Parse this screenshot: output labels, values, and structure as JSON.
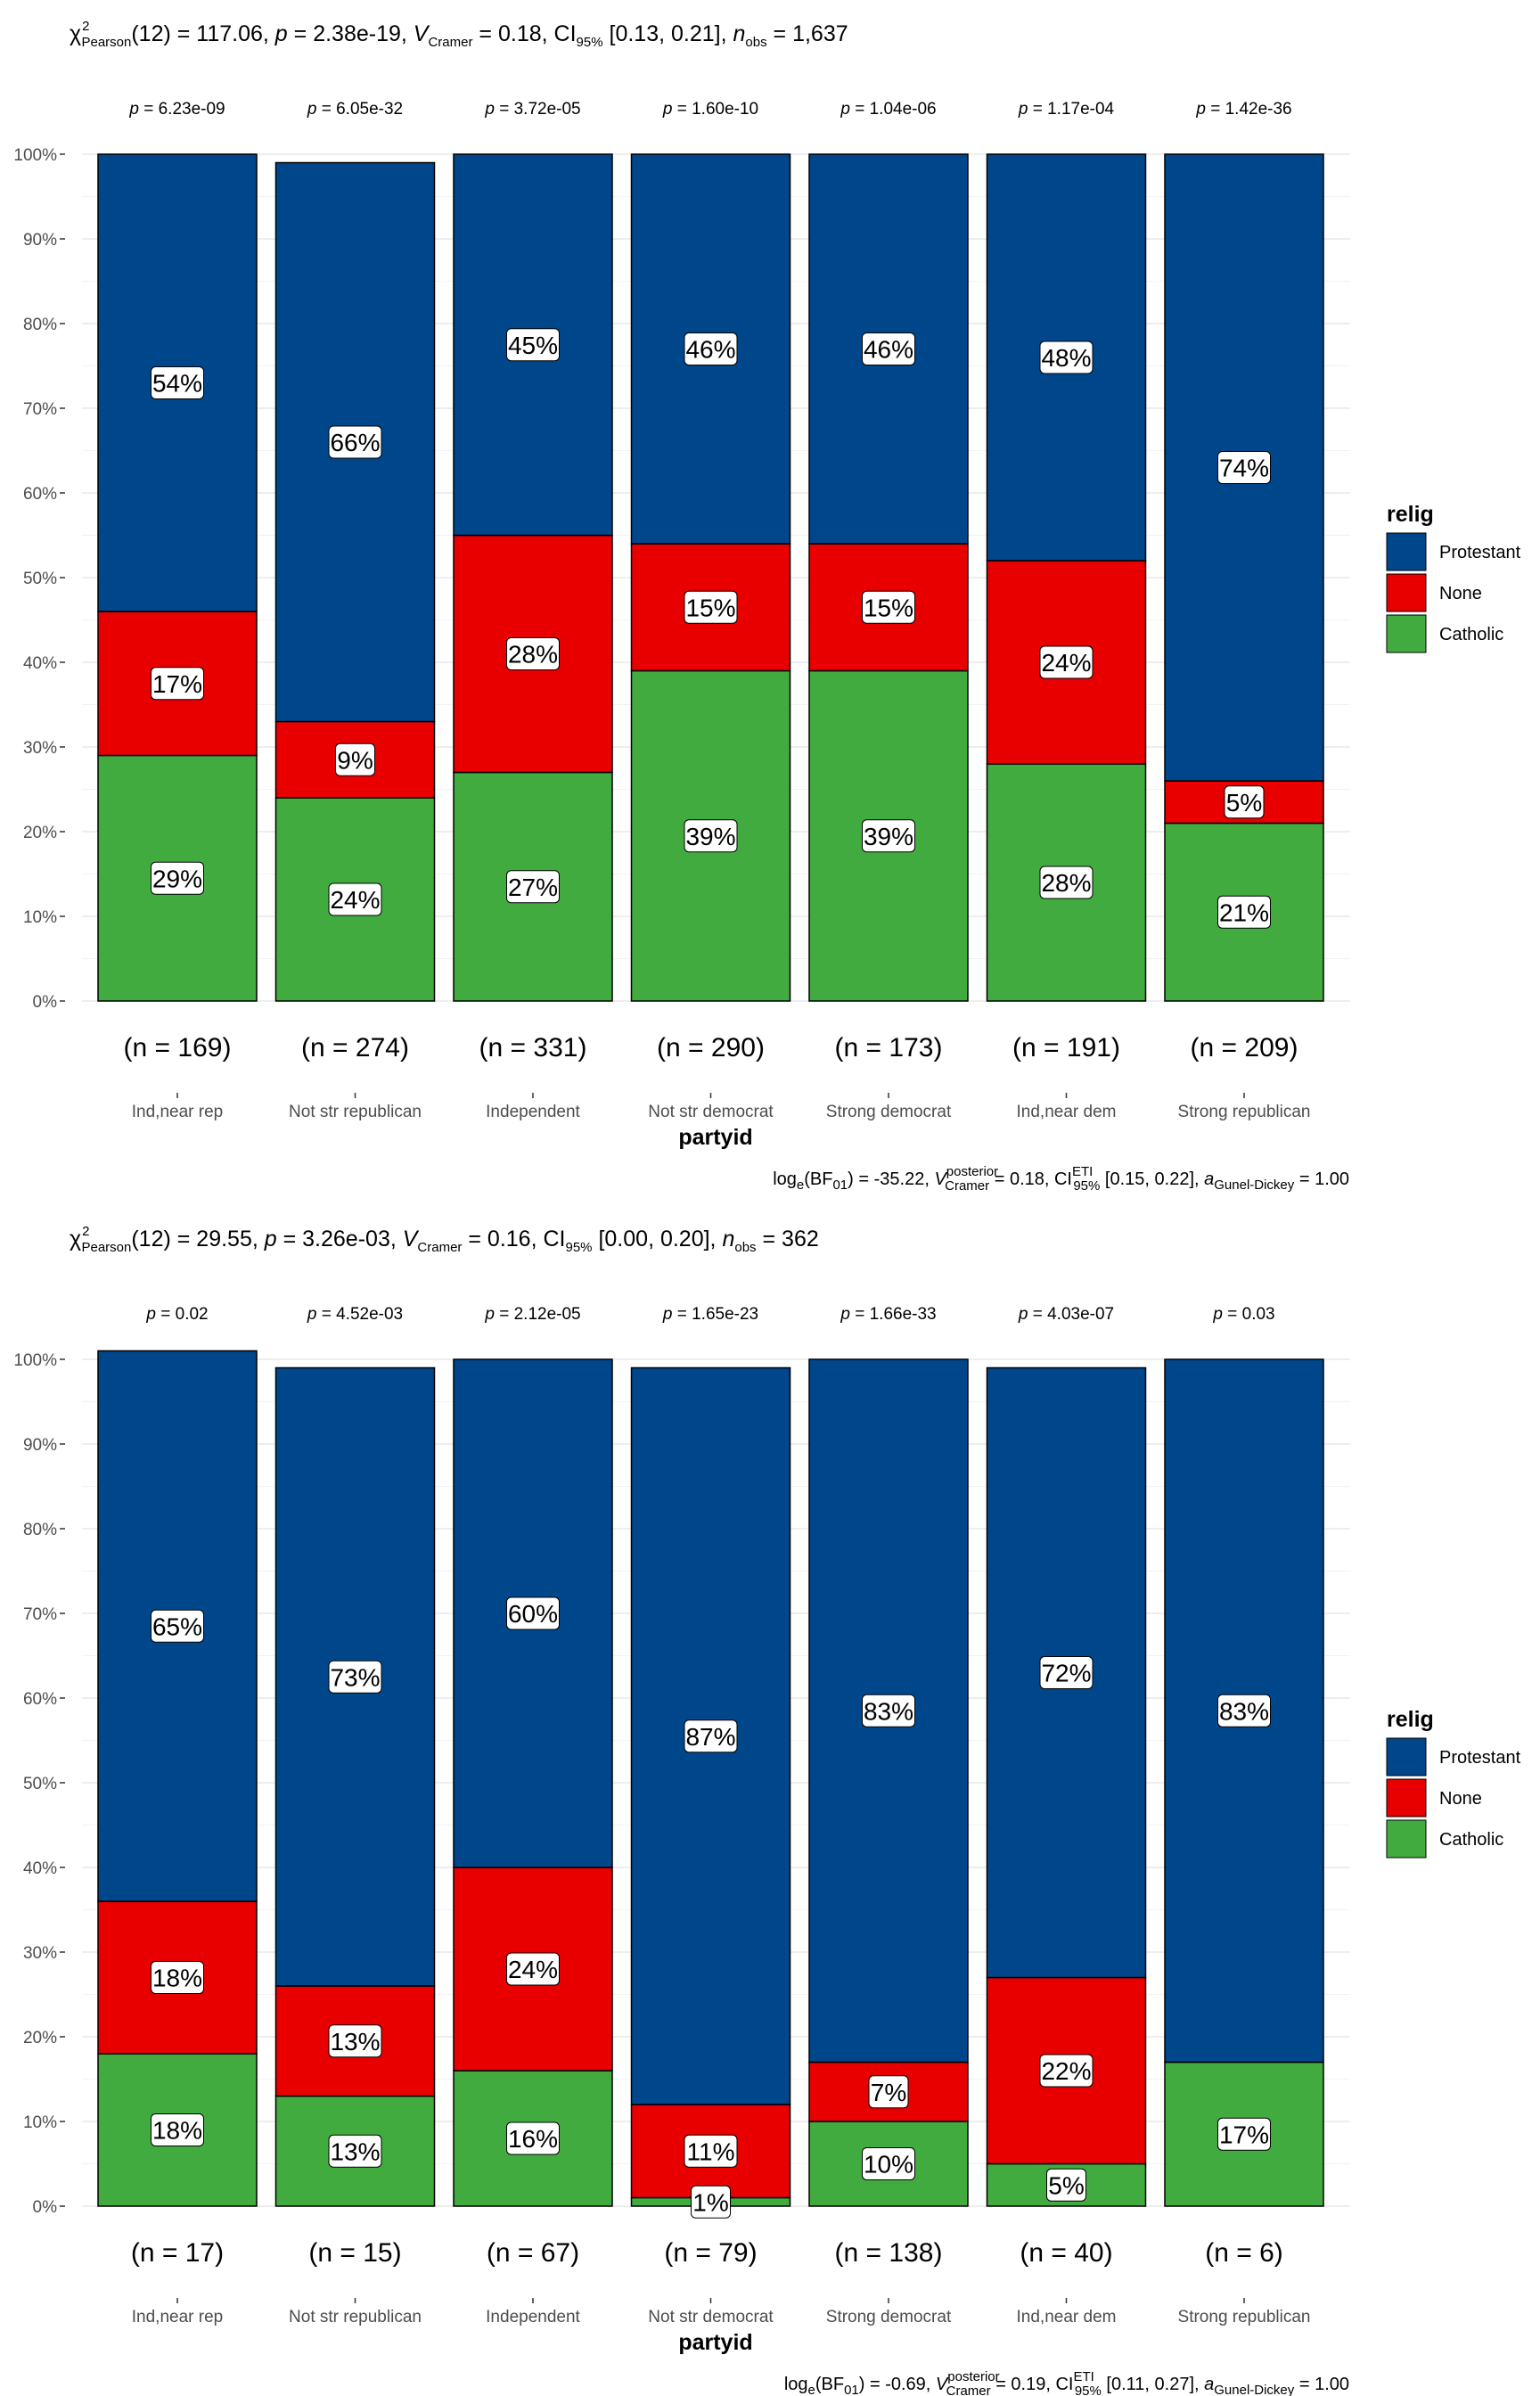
{
  "chart_data": [
    {
      "type": "bar",
      "stacked": true,
      "percent": true,
      "subtitle": {
        "stat": "117.06",
        "df": "12",
        "p": "2.38e-19",
        "v": "0.18",
        "ci": "[0.13, 0.21]",
        "nobs": "1,637"
      },
      "caption": {
        "bf": "-35.22",
        "v": "0.18",
        "ci": "[0.15, 0.22]",
        "a": "1.00"
      },
      "xlabel": "partyid",
      "ylim": [
        0,
        100
      ],
      "yticks": [
        "0%",
        "10%",
        "20%",
        "30%",
        "40%",
        "50%",
        "60%",
        "70%",
        "80%",
        "90%",
        "100%"
      ],
      "categories": [
        "Ind,near rep",
        "Not str republican",
        "Independent",
        "Not str democrat",
        "Strong democrat",
        "Ind,near dem",
        "Strong republican"
      ],
      "pvalues": [
        "6.23e-09",
        "6.05e-32",
        "3.72e-05",
        "1.60e-10",
        "1.04e-06",
        "1.17e-04",
        "1.42e-36"
      ],
      "counts": [
        "(n = 169)",
        "(n = 274)",
        "(n = 331)",
        "(n = 290)",
        "(n = 173)",
        "(n = 191)",
        "(n = 209)"
      ],
      "series": [
        {
          "name": "Catholic",
          "color": "#41AB3F",
          "values": [
            29,
            24,
            27,
            39,
            39,
            28,
            21
          ],
          "labels": [
            "29%",
            "24%",
            "27%",
            "39%",
            "39%",
            "28%",
            "21%"
          ]
        },
        {
          "name": "None",
          "color": "#E80000",
          "values": [
            17,
            9,
            28,
            15,
            15,
            24,
            5
          ],
          "labels": [
            "17%",
            "9%",
            "28%",
            "15%",
            "15%",
            "24%",
            "5%"
          ]
        },
        {
          "name": "Protestant",
          "color": "#00468B",
          "values": [
            54,
            66,
            45,
            46,
            46,
            48,
            74
          ],
          "labels": [
            "54%",
            "66%",
            "45%",
            "46%",
            "46%",
            "48%",
            "74%"
          ]
        }
      ],
      "legend": {
        "title": "relig",
        "entries": [
          "Protestant",
          "None",
          "Catholic"
        ],
        "position": "right"
      }
    },
    {
      "type": "bar",
      "stacked": true,
      "percent": true,
      "subtitle": {
        "stat": "29.55",
        "df": "12",
        "p": "3.26e-03",
        "v": "0.16",
        "ci": "[0.00, 0.20]",
        "nobs": "362"
      },
      "caption": {
        "bf": "-0.69",
        "v": "0.19",
        "ci": "[0.11, 0.27]",
        "a": "1.00"
      },
      "xlabel": "partyid",
      "ylim": [
        0,
        100
      ],
      "yticks": [
        "0%",
        "10%",
        "20%",
        "30%",
        "40%",
        "50%",
        "60%",
        "70%",
        "80%",
        "90%",
        "100%"
      ],
      "categories": [
        "Ind,near rep",
        "Not str republican",
        "Independent",
        "Not str democrat",
        "Strong democrat",
        "Ind,near dem",
        "Strong republican"
      ],
      "pvalues": [
        "0.02",
        "4.52e-03",
        "2.12e-05",
        "1.65e-23",
        "1.66e-33",
        "4.03e-07",
        "0.03"
      ],
      "counts": [
        "(n = 17)",
        "(n = 15)",
        "(n = 67)",
        "(n = 79)",
        "(n = 138)",
        "(n = 40)",
        "(n = 6)"
      ],
      "series": [
        {
          "name": "Catholic",
          "color": "#41AB3F",
          "values": [
            18,
            13,
            16,
            1,
            10,
            5,
            17
          ],
          "labels": [
            "18%",
            "13%",
            "16%",
            "1%",
            "10%",
            "5%",
            "17%"
          ]
        },
        {
          "name": "None",
          "color": "#E80000",
          "values": [
            18,
            13,
            24,
            11,
            7,
            22,
            0
          ],
          "labels": [
            "18%",
            "13%",
            "24%",
            "11%",
            "7%",
            "22%",
            ""
          ]
        },
        {
          "name": "Protestant",
          "color": "#00468B",
          "values": [
            65,
            73,
            60,
            87,
            83,
            72,
            83
          ],
          "labels": [
            "65%",
            "73%",
            "60%",
            "87%",
            "83%",
            "72%",
            "83%"
          ]
        }
      ],
      "legend": {
        "title": "relig",
        "entries": [
          "Protestant",
          "None",
          "Catholic"
        ],
        "position": "right"
      }
    }
  ]
}
